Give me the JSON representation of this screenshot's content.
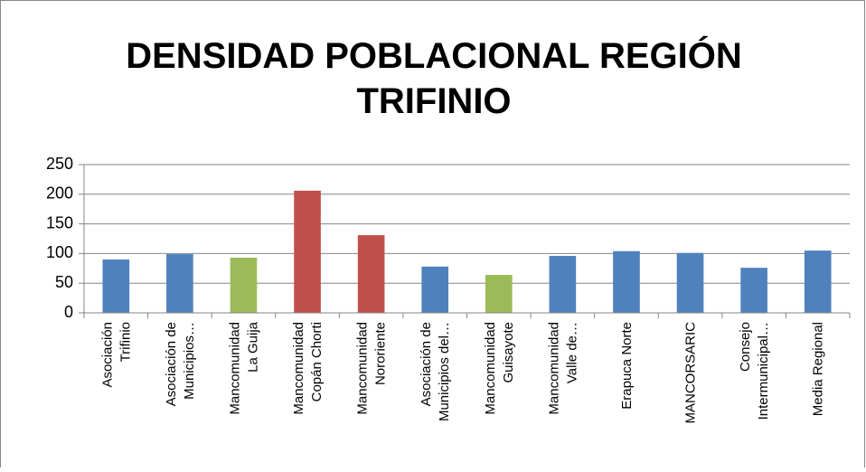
{
  "chart_data": {
    "type": "bar",
    "title": "DENSIDAD POBLACIONAL REGIÓN\nTRIFINIO",
    "categories": [
      "Asociación\nTrifinio",
      "Asociación de\nMunicipios…",
      "Mancomunidad\nLa Guija",
      "Mancomunidad\nCopán Chorti",
      "Mancomunidad\nNororiente",
      "Asociación de\nMunicipios del…",
      "Mancomunidad\nGuisayote",
      "Mancomunidad\nValle de…",
      "Erapuca Norte",
      "MANCORSARIC",
      "Consejo\nIntermunicipal…",
      "Media Regional"
    ],
    "values": [
      90,
      99,
      93,
      206,
      131,
      78,
      64,
      96,
      104,
      101,
      76,
      105
    ],
    "colors": [
      "#4f81bd",
      "#4f81bd",
      "#9bbb59",
      "#c0504d",
      "#c0504d",
      "#4f81bd",
      "#9bbb59",
      "#4f81bd",
      "#4f81bd",
      "#4f81bd",
      "#4f81bd",
      "#4f81bd"
    ],
    "ylim": [
      0,
      250
    ],
    "yticks": [
      0,
      50,
      100,
      150,
      200,
      250
    ],
    "grid": true
  }
}
